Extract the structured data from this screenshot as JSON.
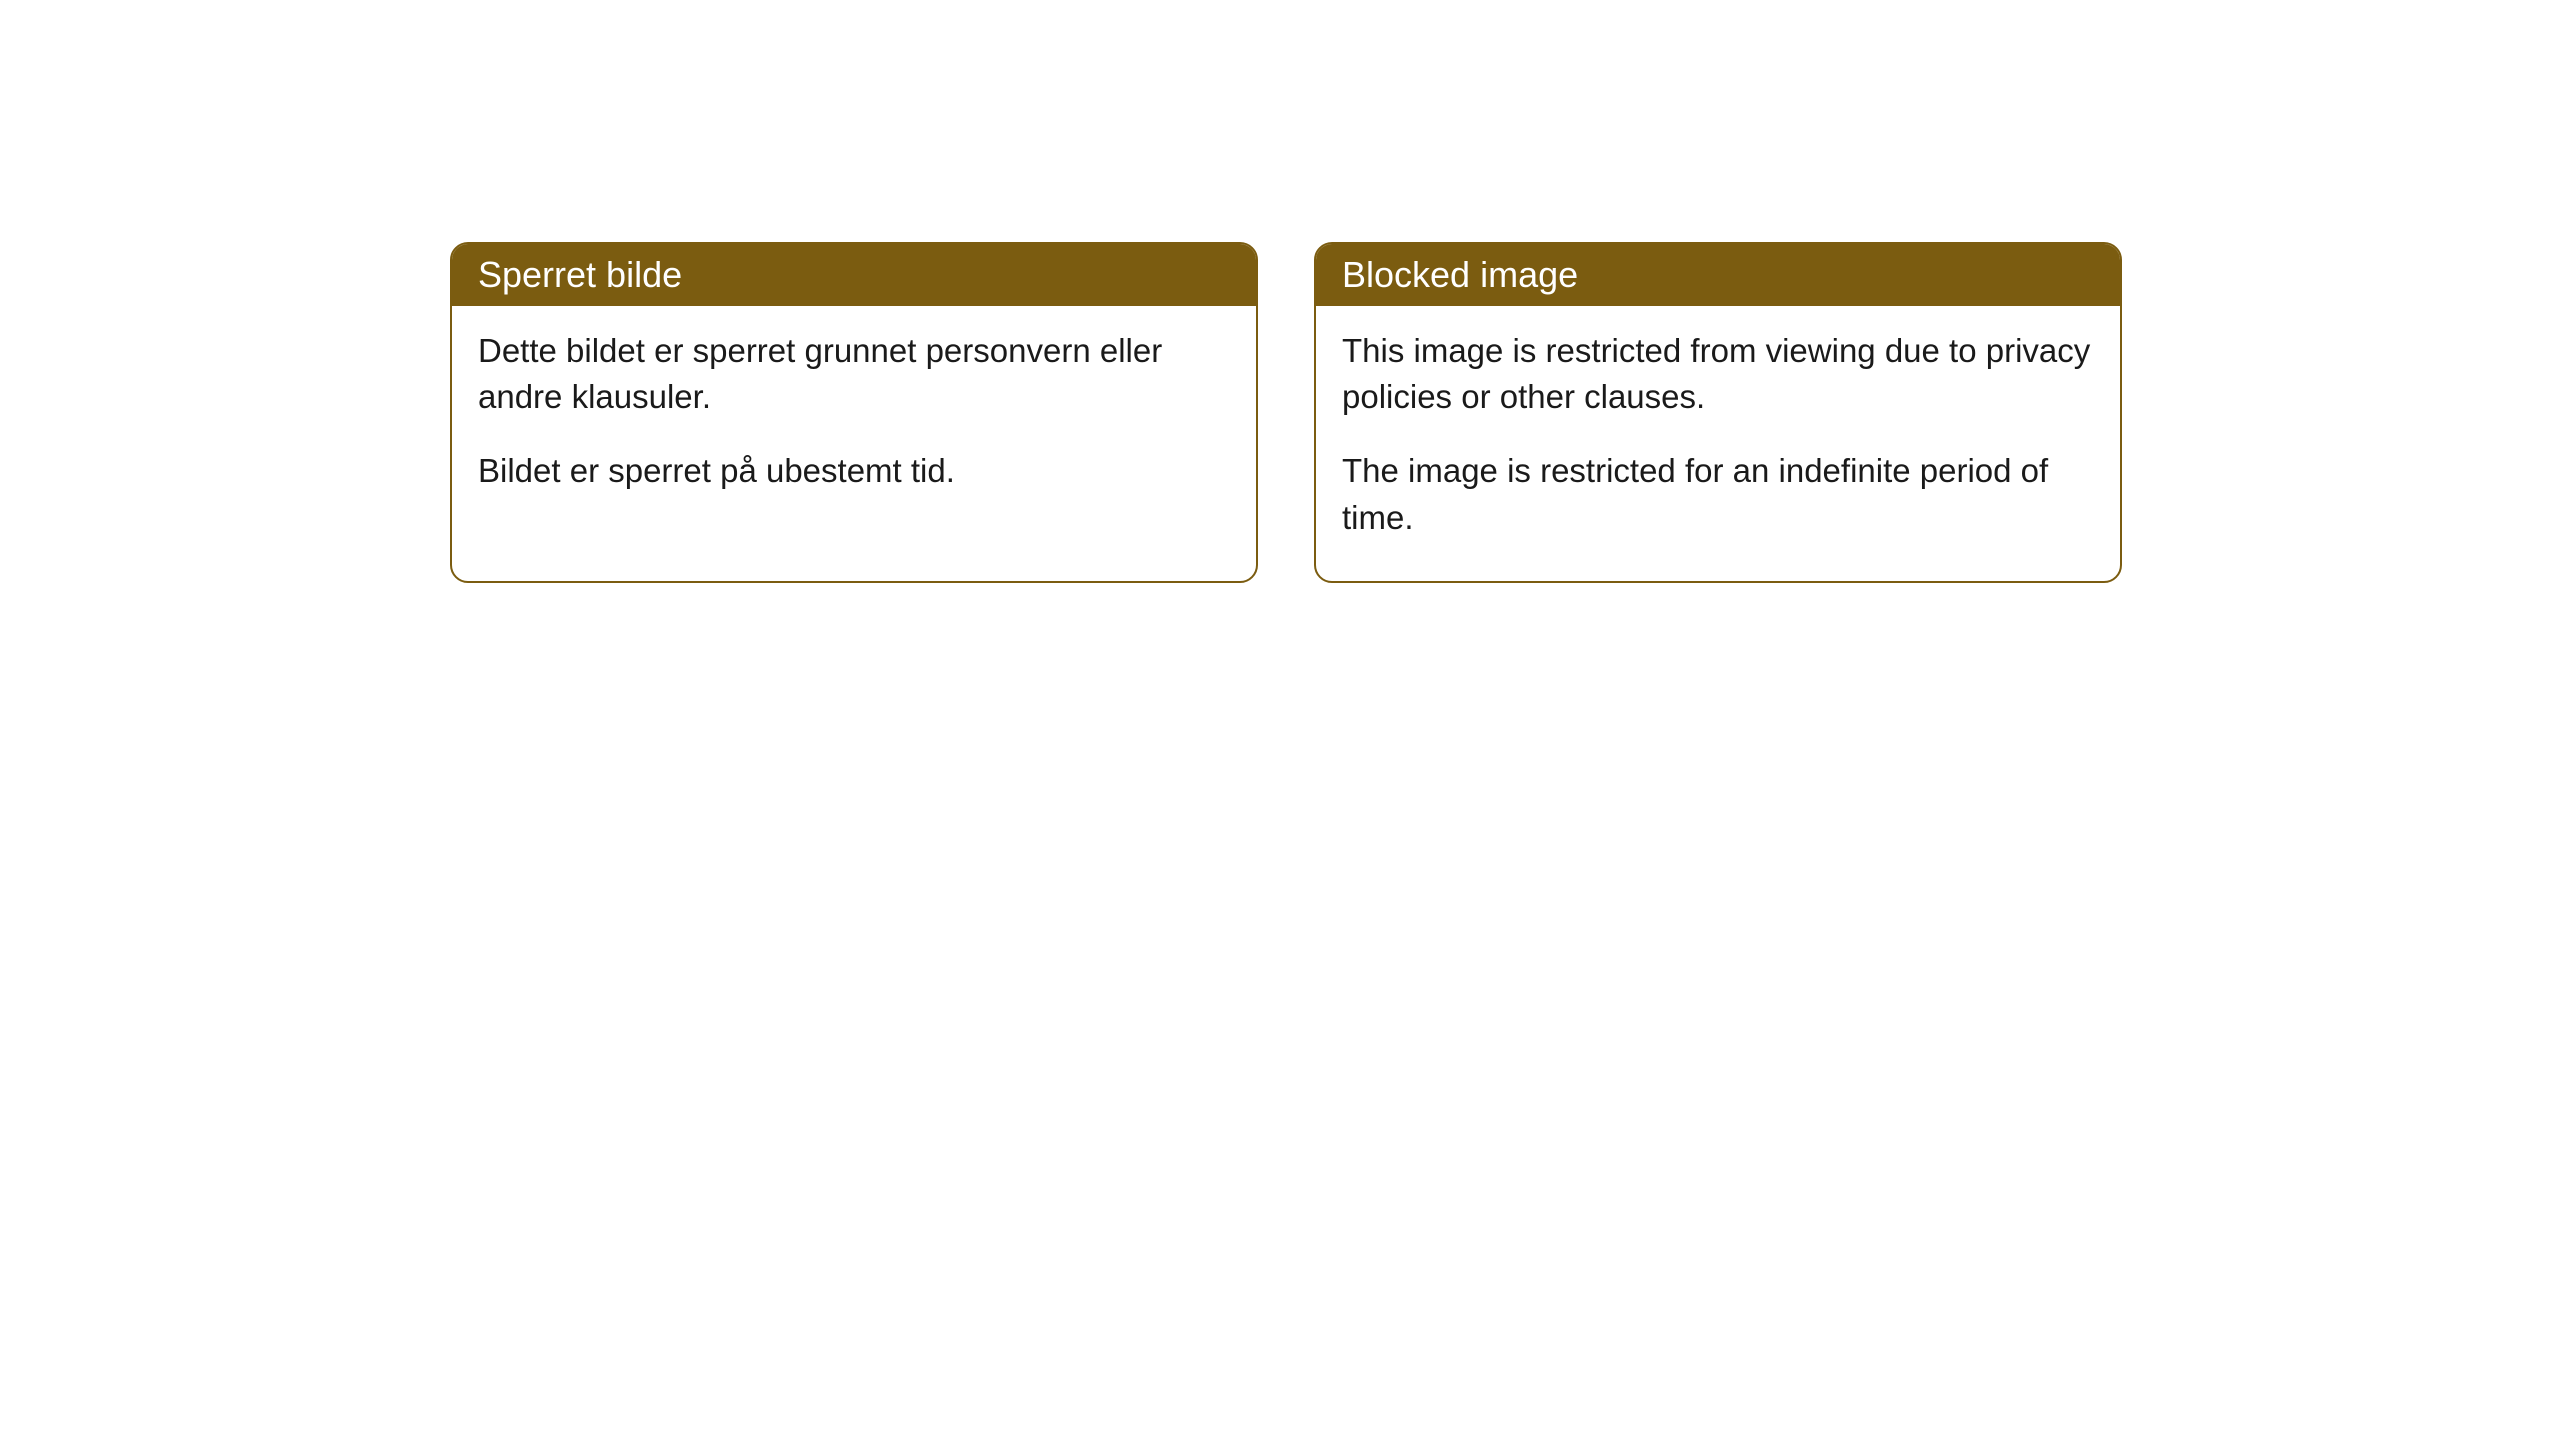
{
  "cards": [
    {
      "title": "Sperret bilde",
      "paragraph1": "Dette bildet er sperret grunnet personvern eller andre klausuler.",
      "paragraph2": "Bildet er sperret på ubestemt tid."
    },
    {
      "title": "Blocked image",
      "paragraph1": "This image is restricted from viewing due to privacy policies or other clauses.",
      "paragraph2": "The image is restricted for an indefinite period of time."
    }
  ],
  "styling": {
    "header_background": "#7b5c10",
    "header_text_color": "#ffffff",
    "card_border_color": "#7b5c10",
    "card_background": "#ffffff",
    "body_text_color": "#1a1a1a",
    "page_background": "#ffffff",
    "border_radius": 18,
    "header_fontsize": 36,
    "body_fontsize": 33
  }
}
